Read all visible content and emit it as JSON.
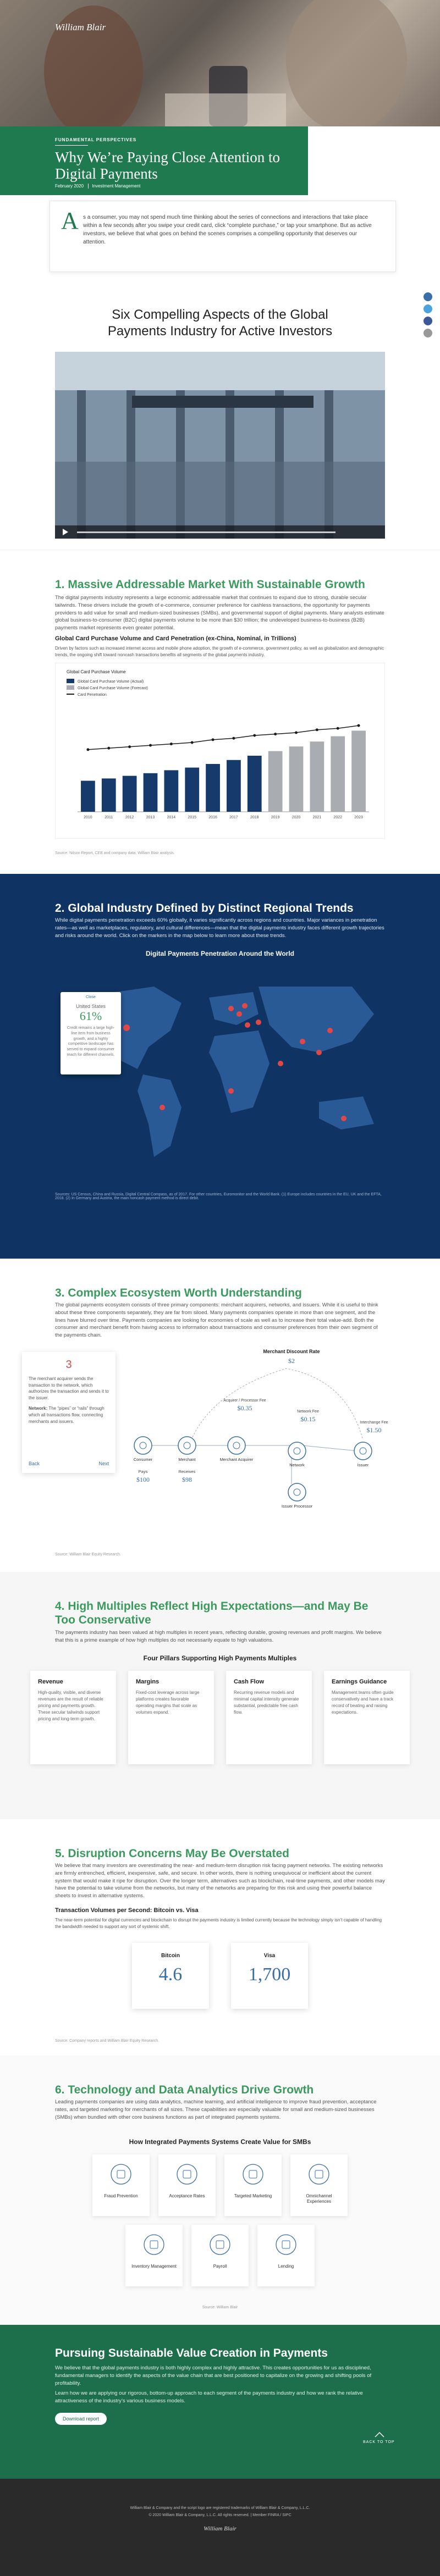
{
  "header": {
    "logo": "William Blair"
  },
  "article": {
    "kicker": "FUNDAMENTAL PERSPECTIVES",
    "title": "Why We’re Paying Close Attention to Digital Payments",
    "date": "February 2020",
    "category": "Investment Management",
    "dropcap": "A",
    "intro": "s a consumer, you may not spend much time thinking about the series of connections and interactions that take place within a few seconds after you swipe your credit card, click “complete purchase,” or tap your smartphone. But as active investors, we believe that what goes on behind the scenes comprises a compelling opportunity that deserves our attention."
  },
  "aspects": {
    "title": "Six Compelling Aspects of the Global Payments Industry for Active Investors"
  },
  "section1": {
    "title": "1. Massive Addressable Market With Sustainable Growth",
    "body": "The digital payments industry represents a large economic addressable market that continues to expand due to strong, durable secular tailwinds. These drivers include the growth of e-commerce, consumer preference for cashless transactions, the opportunity for payments providers to add value for small and medium-sized businesses (SMBs), and governmental support of digital payments. Many analysts estimate global business-to-consumer (B2C) digital payments volume to be more than $30 trillion; the undeveloped business-to-business (B2B) payments market represents even greater potential.",
    "chart": {
      "type": "bar",
      "title": "Global Card Purchase Volume and Card Penetration (ex-China, Nominal, in Trillions)",
      "note": "Driven by factors such as increased internet access and mobile phone adoption, the growth of e-commerce, government policy, as well as globalization and demographic trends, the ongoing shift toward noncash transactions benefits all segments of the global payments industry.",
      "inner_title": "Global Card Purchase Volume",
      "categories": [
        "2010",
        "2011",
        "2012",
        "2013",
        "2014",
        "2015",
        "2016",
        "2017",
        "2018",
        "2019",
        "2020",
        "2021",
        "2022",
        "2023"
      ],
      "series": [
        {
          "name": "Global Card Purchase Volume (Actual)",
          "color": "#163a6b",
          "values": [
            9.4,
            10.1,
            10.9,
            11.7,
            12.6,
            13.4,
            14.5,
            15.7,
            17.0,
            null,
            null,
            null,
            null,
            null
          ]
        },
        {
          "name": "Global Card Purchase Volume (Forecast)",
          "color": "#a9acb0",
          "values": [
            null,
            null,
            null,
            null,
            null,
            null,
            null,
            null,
            null,
            18.4,
            19.8,
            21.3,
            22.9,
            24.6
          ]
        },
        {
          "name": "Card Penetration",
          "color": "#1c1c1c",
          "type": "line",
          "axis": "y2",
          "values": [
            44,
            45,
            46,
            47,
            48,
            49,
            51,
            52,
            54,
            55,
            56,
            58,
            59,
            61
          ]
        }
      ],
      "ylim": [
        0,
        30
      ],
      "y2lim": [
        0,
        70
      ],
      "source": "Source: Nilson Report, CEB and company data; William Blair analysis."
    }
  },
  "section2": {
    "title": "2. Global Industry Defined by Distinct Regional Trends",
    "body": "While digital payments penetration exceeds 60% globally, it varies significantly across regions and countries. Major variances in penetration rates—as well as marketplaces, regulatory, and cultural differences—mean that the digital payments industry faces different growth trajectories and risks around the world. Click on the markers in the map below to learn more about these trends.",
    "map_title": "Digital Payments Penetration Around the World",
    "popup_close": "Close",
    "popup_country": "United States",
    "popup_value": "61%",
    "popup_text": "Credit remains a large high-line item from business growth, and a highly competitive landscape has served to expand consumer reach for different channels.",
    "source": "Sources: US Census, China and Russia, Digital Central Compass, as of 2017. For other countries, Euromonitor and the World Bank. (1) Europe includes countries in the EU, UK and the EFTA, 2018. (2) In Germany and Austria, the main noncash payment method is direct debit."
  },
  "section3": {
    "title": "3. Complex Ecosystem Worth Understanding",
    "body": "The global payments ecosystem consists of three primary components: merchant acquirers, networks, and issuers. While it is useful to think about these three components separately, they are far from siloed. Many payments companies operate in more than one segment, and the lines have blurred over time. Payments companies are looking for economies of scale as well as to increase their total value-add. Both the consumer and merchant benefit from having access to information about transactions and consumer preferences from their own segment of the payments chain.",
    "step": "3",
    "step_text": "The merchant acquirer sends the transaction to the network, which authorizes the transaction and sends it to the issuer.",
    "step_term": "Network:",
    "step_def": "The “pipes” or “rails” through which all transactions flow, connecting merchants and issuers.",
    "back": "Back",
    "next": "Next",
    "mdr_label": "Merchant Discount Rate",
    "mdr_value": "$2",
    "fees": [
      {
        "label": "Acquirer / Processor Fee",
        "value": "$0.35"
      },
      {
        "label": "Network Fee",
        "value": "$0.15"
      },
      {
        "label": "Interchange Fee",
        "value": "$1.50"
      }
    ],
    "nodes": [
      "Consumer",
      "Merchant",
      "Merchant Acquirer",
      "Network",
      "Issuer",
      "Issuer Processor"
    ],
    "pays_label": "Pays",
    "pays_value": "$100",
    "receives_label": "Receives",
    "receives_value": "$98",
    "source": "Source: William Blair Equity Research."
  },
  "section4": {
    "title": "4. High Multiples Reflect High Expectations—and May Be Too Conservative",
    "body": "The payments industry has been valued at high multiples in recent years, reflecting durable, growing revenues and profit margins. We believe that this is a prime example of how high multiples do not necessarily equate to high valuations.",
    "subtitle": "Four Pillars Supporting High Payments Multiples",
    "cards": [
      {
        "title": "Revenue",
        "text": "High-quality, visible, and diverse revenues are the result of reliable pricing and payments growth. These secular tailwinds support pricing and long-term growth."
      },
      {
        "title": "Margins",
        "text": "Fixed-cost leverage across large platforms creates favorable operating margins that scale as volumes expand."
      },
      {
        "title": "Cash Flow",
        "text": "Recurring revenue models and minimal capital intensity generate substantial, predictable free cash flow."
      },
      {
        "title": "Earnings Guidance",
        "text": "Management teams often guide conservatively and have a track record of beating and raising expectations."
      }
    ]
  },
  "section5": {
    "title": "5. Disruption Concerns May Be Overstated",
    "body": "We believe that many investors are overestimating the near- and medium-term disruption risk facing payment networks. The existing networks are firmly entrenched, efficient, inexpensive, safe, and secure. In other words, there is nothing unequivocal or inefficient about the current system that would make it ripe for disruption. Over the longer term, alternatives such as blockchain, real-time payments, and other models may have the potential to take volume from the networks, but many of the networks are preparing for this risk and using their powerful balance sheets to invest in alternative systems.",
    "subtitle": "Transaction Volumes per Second: Bitcoin vs. Visa",
    "note": "The near-term potential for digital currencies and blockchain to disrupt the payments industry is limited currently because the technology simply isn’t capable of handling the bandwidth needed to support any sort of systemic shift.",
    "stats": [
      {
        "name": "Bitcoin",
        "value": "4.6"
      },
      {
        "name": "Visa",
        "value": "1,700"
      }
    ],
    "source": "Source: Company reports and William Blair Equity Research."
  },
  "section6": {
    "title": "6. Technology and Data Analytics Drive Growth",
    "body": "Leading payments companies are using data analytics, machine learning, and artificial intelligence to improve fraud prevention, acceptance rates, and targeted marketing for merchants of all sizes. These capabilities are especially valuable for small and medium-sized businesses (SMBs) when bundled with other core business functions as part of integrated payments systems.",
    "subtitle": "How Integrated Payments Systems Create Value for SMBs",
    "items": [
      "Fraud Prevention",
      "Acceptance Rates",
      "Targeted Marketing",
      "Omnichannel Experiences",
      "Inventory Management",
      "Payroll",
      "Lending"
    ],
    "source": "Source: William Blair"
  },
  "cta": {
    "title": "Pursuing Sustainable Value Creation in Payments",
    "body1": "We believe that the global payments industry is both highly complex and highly attractive. This creates opportunities for us as disciplined, fundamental managers to identify the aspects of the value chain that are best positioned to capitalize on the growing and shifting pools of profitability.",
    "body2": "Learn how we are applying our rigorous, bottom-up approach to each segment of the payments industry and how we rank the relative attractiveness of the industry’s various business models.",
    "button": "Download report",
    "back_to_top": "BACK TO TOP"
  },
  "footer": {
    "line1": "William Blair & Company and the script logo are registered trademarks of William Blair & Company, L.L.C.",
    "line2": "© 2020 William Blair & Company, L.L.C. All rights reserved. | Member FINRA / SIPC",
    "logo": "William Blair"
  }
}
